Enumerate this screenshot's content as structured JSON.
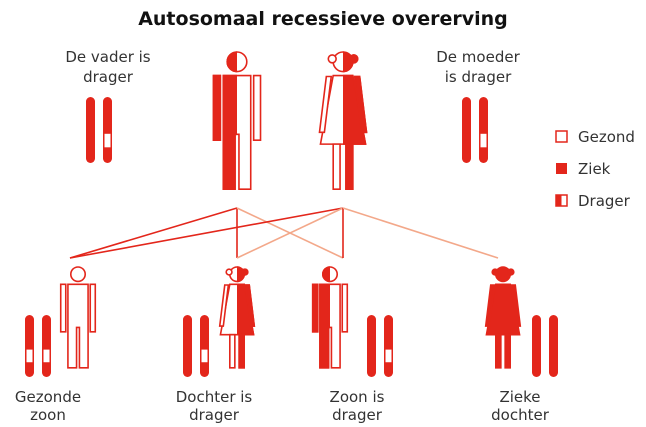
{
  "title": "Autosomaal recessieve overerving",
  "parents": [
    {
      "label": [
        "De vader is",
        "drager"
      ]
    },
    {
      "label": [
        "De moeder",
        "is drager"
      ]
    }
  ],
  "legend": [
    "Gezond",
    "Ziek",
    "Drager"
  ],
  "children": [
    {
      "label": [
        "Gezonde",
        "zoon"
      ]
    },
    {
      "label": [
        "Dochter is",
        "drager"
      ]
    },
    {
      "label": [
        "Zoon is",
        "drager"
      ]
    },
    {
      "label": [
        "Zieke",
        "dochter"
      ]
    }
  ]
}
